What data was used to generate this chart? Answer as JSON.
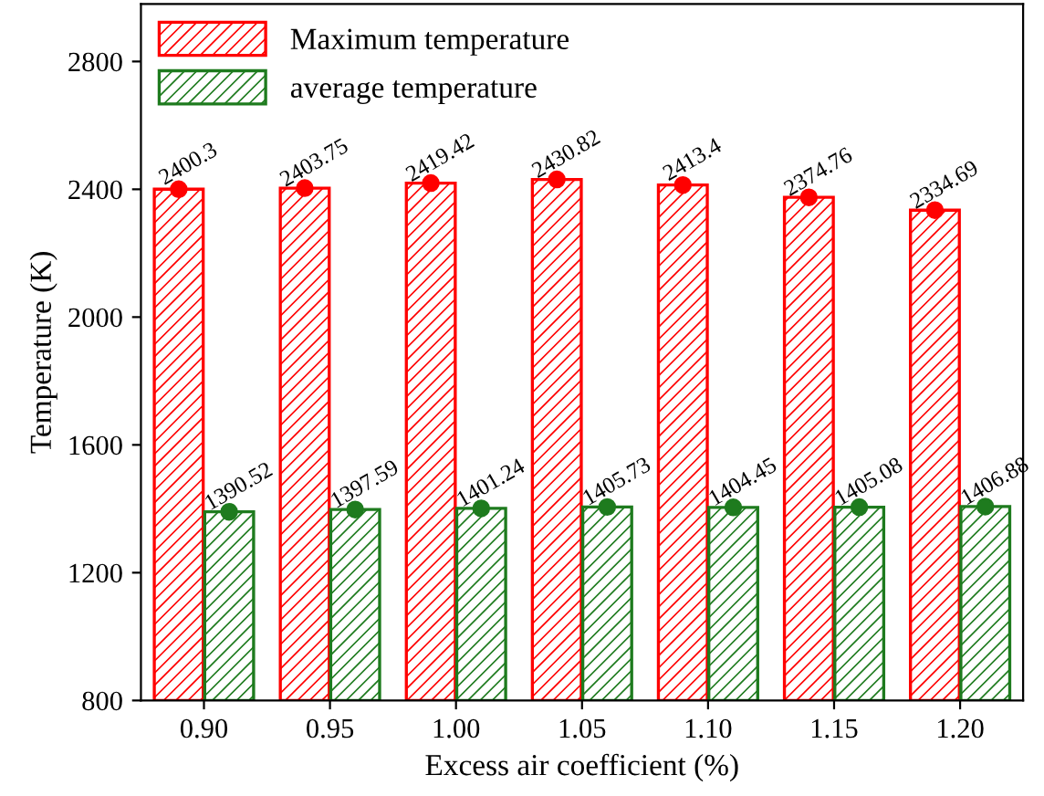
{
  "chart_data": {
    "type": "bar",
    "xlabel": "Excess air coefficient (%)",
    "ylabel": "Temperature (K)",
    "categories": [
      "0.90",
      "0.95",
      "1.00",
      "1.05",
      "1.10",
      "1.15",
      "1.20"
    ],
    "series": [
      {
        "name": "Maximum temperature",
        "color": "#ff0000",
        "values": [
          2400.3,
          2403.75,
          2419.42,
          2430.82,
          2413.4,
          2374.76,
          2334.69
        ],
        "value_labels": [
          "2400.3",
          "2403.75",
          "2419.42",
          "2430.82",
          "2413.4",
          "2374.76",
          "2334.69"
        ]
      },
      {
        "name": "average temperature",
        "color": "#1e7b1e",
        "values": [
          1390.52,
          1397.59,
          1401.24,
          1405.73,
          1404.45,
          1405.08,
          1406.88
        ],
        "value_labels": [
          "1390.52",
          "1397.59",
          "1401.24",
          "1405.73",
          "1404.45",
          "1405.08",
          "1406.88"
        ]
      },
      {
        "type": "scatter",
        "x": [
          "0.90",
          "0.95",
          "1.00",
          "1.05",
          "1.10",
          "1.15",
          "1.20"
        ],
        "color": "#ff0000",
        "values": [
          2400.3,
          2403.75,
          2419.42,
          2430.82,
          2413.4,
          2374.76,
          2334.69
        ]
      },
      {
        "type": "scatter",
        "x": [
          "0.90",
          "0.95",
          "1.00",
          "1.05",
          "1.10",
          "1.15",
          "1.20"
        ],
        "color": "#1e7b1e",
        "values": [
          1390.52,
          1397.59,
          1401.24,
          1405.73,
          1404.45,
          1405.08,
          1406.88
        ]
      }
    ],
    "ylim": [
      800,
      2980
    ],
    "yticks": [
      800,
      1200,
      1600,
      2000,
      2400,
      2800
    ],
    "marker": "circle",
    "legend": "top left",
    "grid": false
  }
}
